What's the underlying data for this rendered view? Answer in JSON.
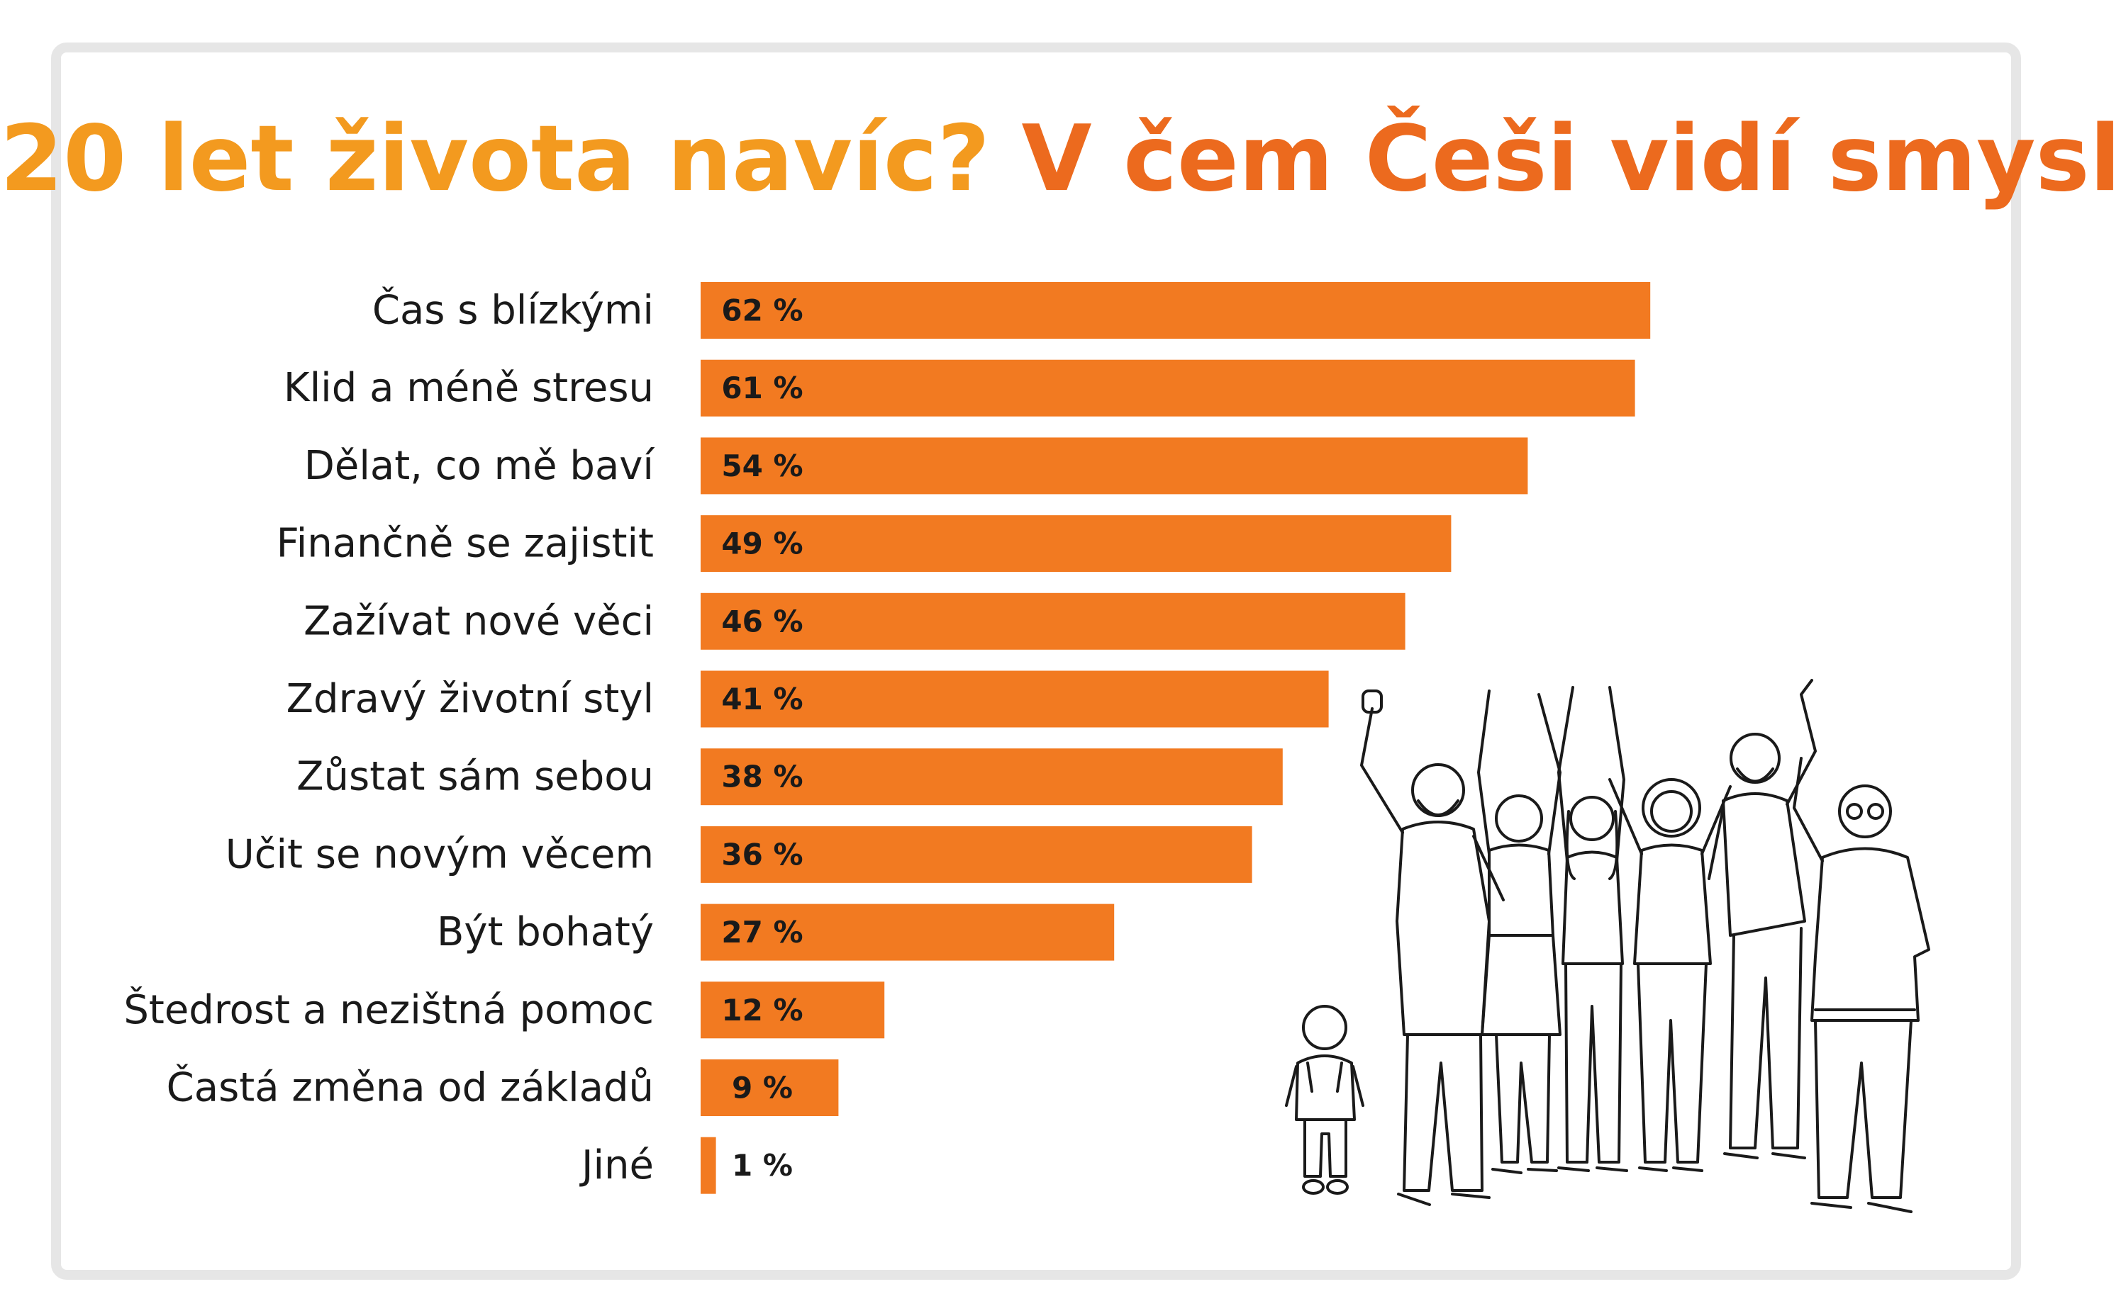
{
  "title": {
    "part1": "20 let života navíc?",
    "part2": "V čem Češi vidí smysl"
  },
  "colors": {
    "bar": "#f27a21",
    "title_part1": "#f39a1f",
    "title_part2": "#ec6a1e",
    "frame": "#e6e6e6"
  },
  "chart_data": {
    "type": "bar",
    "orientation": "horizontal",
    "title": "20 let života navíc? V čem Češi vidí smysl",
    "categories": [
      "Čas s blízkými",
      "Klid a méně stresu",
      "Dělat, co mě baví",
      "Finančně se zajistit",
      "Zažívat nové věci",
      "Zdravý životní styl",
      "Zůstat sám sebou",
      "Učit se novým věcem",
      "Být bohatý",
      "Štedrost a nezištná pomoc",
      "Častá změna od základů",
      "Jiné"
    ],
    "values": [
      62,
      61,
      54,
      49,
      46,
      41,
      38,
      36,
      27,
      12,
      9,
      1
    ],
    "value_labels": [
      "62 %",
      "61 %",
      "54 %",
      "49 %",
      "46 %",
      "41 %",
      "38 %",
      "36 %",
      "27 %",
      "12 %",
      "9 %",
      "1 %"
    ],
    "unit": "%",
    "xlim": [
      0,
      62
    ],
    "grid": false,
    "legend": "none"
  },
  "illustration": {
    "icon": "people-group-illustration"
  }
}
